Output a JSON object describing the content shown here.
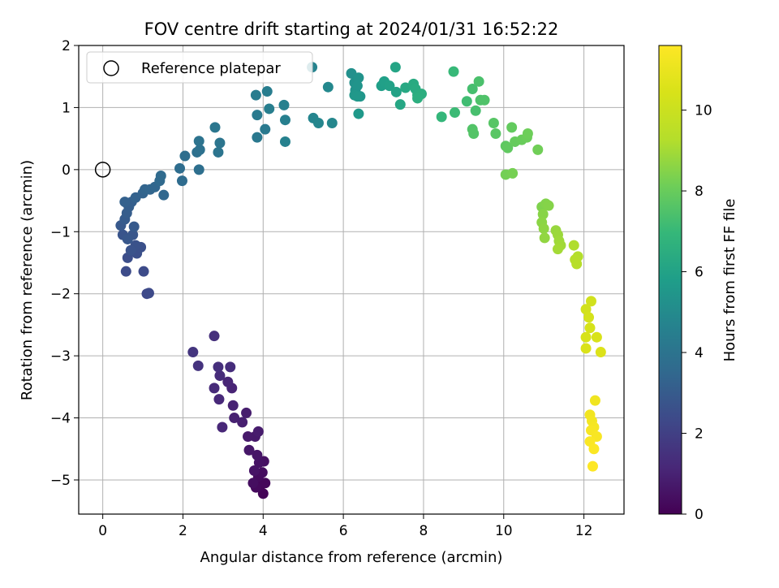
{
  "chart_data": {
    "type": "scatter",
    "title": "FOV centre drift starting at 2024/01/31 16:52:22",
    "xlabel": "Angular distance from reference (arcmin)",
    "ylabel": "Rotation from reference (arcmin)",
    "xlim": [
      -0.6,
      13.0
    ],
    "ylim": [
      -5.55,
      2.0
    ],
    "x_ticks": [
      0,
      2,
      4,
      6,
      8,
      10,
      12
    ],
    "x_tick_labels": [
      "0",
      "2",
      "4",
      "6",
      "8",
      "10",
      "12"
    ],
    "y_ticks": [
      2,
      1,
      0,
      -1,
      -2,
      -3,
      -4,
      -5
    ],
    "y_tick_labels": [
      "2",
      "1",
      "0",
      "−1",
      "−2",
      "−3",
      "−4",
      "−5"
    ],
    "grid": true,
    "legend": {
      "position": "top-left",
      "entries": [
        "Reference platepar"
      ]
    },
    "reference_point": {
      "x": 0,
      "y": 0
    },
    "colorbar": {
      "label": "Hours from first FF file",
      "colormap": "viridis",
      "range": [
        0,
        11.6
      ],
      "ticks": [
        0,
        2,
        4,
        6,
        8,
        10
      ],
      "tick_labels": [
        "0",
        "2",
        "4",
        "6",
        "8",
        "10"
      ]
    },
    "points": [
      [
        4.0,
        -5.22,
        0.1
      ],
      [
        3.92,
        -5.1,
        0.15
      ],
      [
        4.05,
        -5.05,
        0.2
      ],
      [
        3.82,
        -5.12,
        0.25
      ],
      [
        3.88,
        -4.95,
        0.3
      ],
      [
        3.98,
        -4.88,
        0.35
      ],
      [
        3.75,
        -5.05,
        0.4
      ],
      [
        4.02,
        -4.7,
        0.45
      ],
      [
        3.9,
        -4.72,
        0.5
      ],
      [
        3.78,
        -4.85,
        0.55
      ],
      [
        3.85,
        -4.6,
        0.6
      ],
      [
        3.65,
        -4.52,
        0.65
      ],
      [
        3.8,
        -4.3,
        0.7
      ],
      [
        3.62,
        -4.3,
        0.75
      ],
      [
        3.88,
        -4.22,
        0.8
      ],
      [
        3.58,
        -3.92,
        0.85
      ],
      [
        3.48,
        -4.07,
        0.9
      ],
      [
        3.28,
        -4.0,
        0.95
      ],
      [
        3.25,
        -3.8,
        1.0
      ],
      [
        3.22,
        -3.52,
        1.05
      ],
      [
        3.12,
        -3.42,
        1.1
      ],
      [
        2.98,
        -4.15,
        1.15
      ],
      [
        2.9,
        -3.7,
        1.2
      ],
      [
        2.78,
        -3.52,
        1.25
      ],
      [
        2.92,
        -3.32,
        1.3
      ],
      [
        3.18,
        -3.18,
        1.35
      ],
      [
        2.88,
        -3.18,
        1.4
      ],
      [
        2.78,
        -2.68,
        1.45
      ],
      [
        2.38,
        -3.16,
        1.55
      ],
      [
        2.25,
        -2.94,
        1.6
      ],
      [
        1.1,
        -2.0,
        2.3
      ],
      [
        1.15,
        -1.99,
        2.35
      ],
      [
        1.02,
        -1.64,
        2.4
      ],
      [
        0.58,
        -1.64,
        2.45
      ],
      [
        0.62,
        -1.42,
        2.5
      ],
      [
        0.85,
        -1.35,
        2.55
      ],
      [
        0.95,
        -1.25,
        2.6
      ],
      [
        0.82,
        -1.22,
        2.65
      ],
      [
        0.7,
        -1.3,
        2.7
      ],
      [
        0.5,
        -1.05,
        2.75
      ],
      [
        0.75,
        -1.05,
        2.8
      ],
      [
        0.62,
        -1.12,
        2.85
      ],
      [
        0.45,
        -0.9,
        2.9
      ],
      [
        0.78,
        -0.92,
        2.95
      ],
      [
        0.55,
        -0.8,
        3.0
      ],
      [
        0.6,
        -0.7,
        3.05
      ],
      [
        0.65,
        -0.6,
        3.1
      ],
      [
        0.72,
        -0.52,
        3.15
      ],
      [
        0.55,
        -0.52,
        3.2
      ],
      [
        0.82,
        -0.45,
        3.25
      ],
      [
        1.0,
        -0.38,
        3.3
      ],
      [
        1.05,
        -0.32,
        3.35
      ],
      [
        1.18,
        -0.32,
        3.4
      ],
      [
        1.3,
        -0.28,
        3.45
      ],
      [
        1.52,
        -0.41,
        3.5
      ],
      [
        1.42,
        -0.18,
        3.55
      ],
      [
        1.45,
        -0.1,
        3.6
      ],
      [
        1.98,
        -0.18,
        3.65
      ],
      [
        1.92,
        0.02,
        3.7
      ],
      [
        2.05,
        0.22,
        3.75
      ],
      [
        2.4,
        0.0,
        3.8
      ],
      [
        2.35,
        0.28,
        3.85
      ],
      [
        2.42,
        0.32,
        3.9
      ],
      [
        2.4,
        0.46,
        3.95
      ],
      [
        2.88,
        0.28,
        4.0
      ],
      [
        2.92,
        0.43,
        4.05
      ],
      [
        2.8,
        0.68,
        4.1
      ],
      [
        3.85,
        0.52,
        4.2
      ],
      [
        4.05,
        0.65,
        4.25
      ],
      [
        3.85,
        0.88,
        4.3
      ],
      [
        3.82,
        1.2,
        4.35
      ],
      [
        4.1,
        1.26,
        4.4
      ],
      [
        4.15,
        0.98,
        4.45
      ],
      [
        4.55,
        0.8,
        4.5
      ],
      [
        4.52,
        1.04,
        4.55
      ],
      [
        4.55,
        0.45,
        4.6
      ],
      [
        5.22,
        1.65,
        4.7
      ],
      [
        5.25,
        0.83,
        4.75
      ],
      [
        5.38,
        0.75,
        4.8
      ],
      [
        5.72,
        0.75,
        4.85
      ],
      [
        5.62,
        1.33,
        4.9
      ],
      [
        6.2,
        1.55,
        5.2
      ],
      [
        6.28,
        1.4,
        5.25
      ],
      [
        6.3,
        1.28,
        5.3
      ],
      [
        6.38,
        1.48,
        5.35
      ],
      [
        6.35,
        1.35,
        5.4
      ],
      [
        6.42,
        1.18,
        5.45
      ],
      [
        6.28,
        1.2,
        5.5
      ],
      [
        6.35,
        1.18,
        5.55
      ],
      [
        6.38,
        0.9,
        5.6
      ],
      [
        6.95,
        1.35,
        5.85
      ],
      [
        7.02,
        1.42,
        5.9
      ],
      [
        7.15,
        1.35,
        5.95
      ],
      [
        7.32,
        1.25,
        6.0
      ],
      [
        7.3,
        1.65,
        6.1
      ],
      [
        7.42,
        1.05,
        6.15
      ],
      [
        7.55,
        1.32,
        6.25
      ],
      [
        7.75,
        1.38,
        6.35
      ],
      [
        7.8,
        1.3,
        6.4
      ],
      [
        7.85,
        1.2,
        6.45
      ],
      [
        7.95,
        1.22,
        6.5
      ],
      [
        7.85,
        1.15,
        6.55
      ],
      [
        8.45,
        0.85,
        6.9
      ],
      [
        8.75,
        1.58,
        7.0
      ],
      [
        8.78,
        0.92,
        7.1
      ],
      [
        9.08,
        1.1,
        7.2
      ],
      [
        9.22,
        1.3,
        7.3
      ],
      [
        9.3,
        0.95,
        7.35
      ],
      [
        9.38,
        1.42,
        7.4
      ],
      [
        9.42,
        1.12,
        7.45
      ],
      [
        9.52,
        1.12,
        7.5
      ],
      [
        9.22,
        0.65,
        7.55
      ],
      [
        9.25,
        0.58,
        7.6
      ],
      [
        9.75,
        0.75,
        7.65
      ],
      [
        9.8,
        0.58,
        7.7
      ],
      [
        10.05,
        0.38,
        7.8
      ],
      [
        10.1,
        0.35,
        7.85
      ],
      [
        10.2,
        0.68,
        7.9
      ],
      [
        10.28,
        0.45,
        7.95
      ],
      [
        10.45,
        0.48,
        8.0
      ],
      [
        10.58,
        0.52,
        8.05
      ],
      [
        10.6,
        0.58,
        8.1
      ],
      [
        10.85,
        0.32,
        8.15
      ],
      [
        10.05,
        -0.08,
        8.2
      ],
      [
        10.22,
        -0.06,
        8.25
      ],
      [
        10.95,
        -0.6,
        8.4
      ],
      [
        11.05,
        -0.55,
        8.45
      ],
      [
        11.12,
        -0.58,
        8.5
      ],
      [
        10.98,
        -0.72,
        8.55
      ],
      [
        10.95,
        -0.85,
        8.6
      ],
      [
        11.0,
        -0.95,
        8.65
      ],
      [
        11.02,
        -1.1,
        8.7
      ],
      [
        11.3,
        -0.98,
        8.8
      ],
      [
        11.35,
        -1.05,
        8.85
      ],
      [
        11.38,
        -1.15,
        8.9
      ],
      [
        11.42,
        -1.22,
        8.95
      ],
      [
        11.35,
        -1.28,
        9.0
      ],
      [
        11.75,
        -1.22,
        9.2
      ],
      [
        11.85,
        -1.4,
        9.25
      ],
      [
        11.78,
        -1.45,
        9.3
      ],
      [
        11.82,
        -1.52,
        9.35
      ],
      [
        12.18,
        -2.12,
        10.2
      ],
      [
        12.05,
        -2.25,
        10.25
      ],
      [
        12.12,
        -2.38,
        10.3
      ],
      [
        12.15,
        -2.55,
        10.35
      ],
      [
        12.05,
        -2.7,
        10.4
      ],
      [
        12.32,
        -2.7,
        10.45
      ],
      [
        12.05,
        -2.88,
        10.5
      ],
      [
        12.42,
        -2.94,
        10.55
      ],
      [
        12.28,
        -3.72,
        11.2
      ],
      [
        12.15,
        -3.95,
        11.25
      ],
      [
        12.2,
        -4.05,
        11.3
      ],
      [
        12.25,
        -4.15,
        11.35
      ],
      [
        12.18,
        -4.2,
        11.4
      ],
      [
        12.32,
        -4.3,
        11.45
      ],
      [
        12.15,
        -4.38,
        11.5
      ],
      [
        12.25,
        -4.5,
        11.55
      ],
      [
        12.22,
        -4.78,
        11.6
      ]
    ]
  }
}
